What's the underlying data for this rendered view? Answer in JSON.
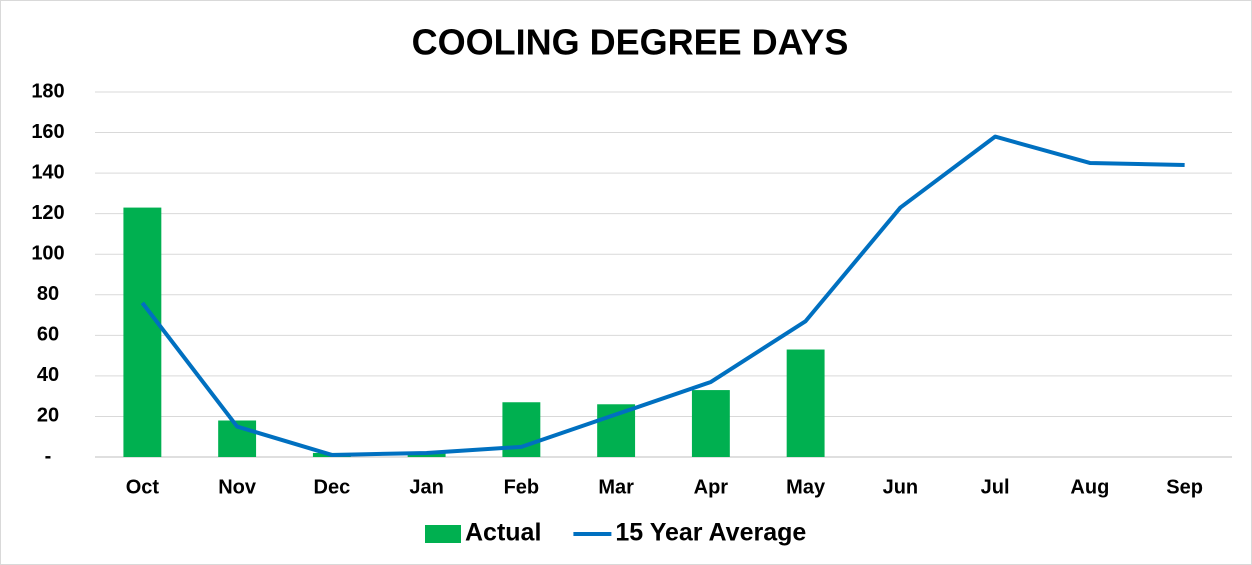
{
  "chart_data": {
    "type": "bar",
    "title": "COOLING DEGREE DAYS",
    "categories": [
      "Oct",
      "Nov",
      "Dec",
      "Jan",
      "Feb",
      "Mar",
      "Apr",
      "May",
      "Jun",
      "Jul",
      "Aug",
      "Sep"
    ],
    "series": [
      {
        "name": "Actual",
        "type": "bar",
        "color": "#00b050",
        "values": [
          123,
          18,
          2,
          2,
          27,
          26,
          33,
          53,
          null,
          null,
          null,
          null
        ]
      },
      {
        "name": "15 Year Average",
        "type": "line",
        "color": "#0070c0",
        "values": [
          76,
          15,
          1,
          2,
          5,
          21,
          37,
          67,
          123,
          158,
          145,
          144
        ]
      }
    ],
    "ylim": [
      0,
      180
    ],
    "yticks": [
      {
        "value": 0,
        "label": "-"
      },
      20,
      40,
      60,
      80,
      100,
      120,
      140,
      160,
      180
    ],
    "grid": true,
    "legend": "bottom"
  }
}
